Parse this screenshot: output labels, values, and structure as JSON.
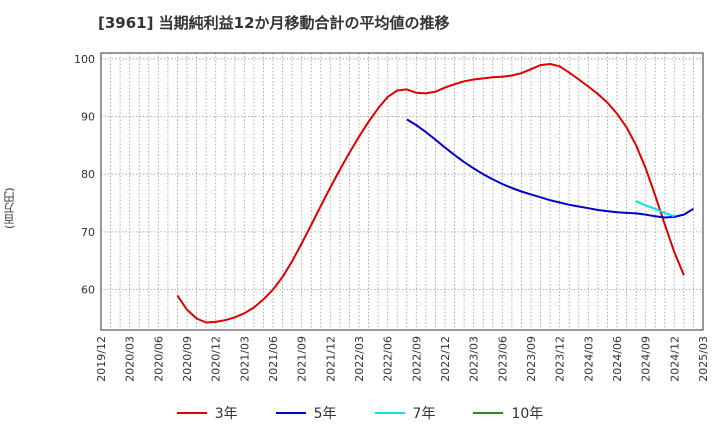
{
  "chart_data": {
    "type": "line",
    "title": "[3961]  当期純利益12か月移動合計の平均値の推移",
    "ylabel": "(百万円)",
    "xlabel": "",
    "ylim": [
      53,
      101
    ],
    "yticks": [
      60,
      70,
      80,
      90,
      100
    ],
    "x_ticks": [
      "2019/12",
      "2020/03",
      "2020/06",
      "2020/09",
      "2020/12",
      "2021/03",
      "2021/06",
      "2021/09",
      "2021/12",
      "2022/03",
      "2022/06",
      "2022/09",
      "2022/12",
      "2023/03",
      "2023/06",
      "2023/09",
      "2023/12",
      "2024/03",
      "2024/06",
      "2024/09",
      "2024/12",
      "2025/03"
    ],
    "x_start": "2019/12",
    "x_months_span": 63,
    "grid": true,
    "series": [
      {
        "name": "3年",
        "color": "#dd0000",
        "start": "2020/08",
        "values": [
          59.0,
          56.5,
          55.0,
          54.3,
          54.4,
          54.7,
          55.2,
          55.9,
          56.9,
          58.3,
          60.0,
          62.2,
          64.9,
          68.0,
          71.2,
          74.5,
          77.7,
          80.8,
          83.7,
          86.5,
          89.1,
          91.4,
          93.4,
          94.5,
          94.7,
          94.1,
          94.0,
          94.3,
          95.0,
          95.6,
          96.1,
          96.4,
          96.6,
          96.8,
          96.9,
          97.1,
          97.5,
          98.2,
          98.9,
          99.1,
          98.7,
          97.6,
          96.4,
          95.2,
          93.9,
          92.4,
          90.5,
          88.1,
          85.0,
          81.0,
          76.3,
          71.3,
          66.5,
          62.5
        ]
      },
      {
        "name": "5年",
        "color": "#0000cc",
        "start": "2022/08",
        "values": [
          89.5,
          88.5,
          87.3,
          86.0,
          84.6,
          83.3,
          82.1,
          81.0,
          80.0,
          79.1,
          78.3,
          77.6,
          77.0,
          76.5,
          76.0,
          75.5,
          75.1,
          74.7,
          74.4,
          74.1,
          73.8,
          73.6,
          73.4,
          73.3,
          73.2,
          73.0,
          72.7,
          72.5,
          72.6,
          73.0,
          74.0
        ]
      },
      {
        "name": "7年",
        "color": "#00e5ee",
        "start": "2024/08",
        "values": [
          75.3,
          74.6,
          74.0,
          73.3,
          72.7
        ]
      },
      {
        "name": "10年",
        "color": "#228b22",
        "start": "",
        "values": []
      }
    ]
  }
}
